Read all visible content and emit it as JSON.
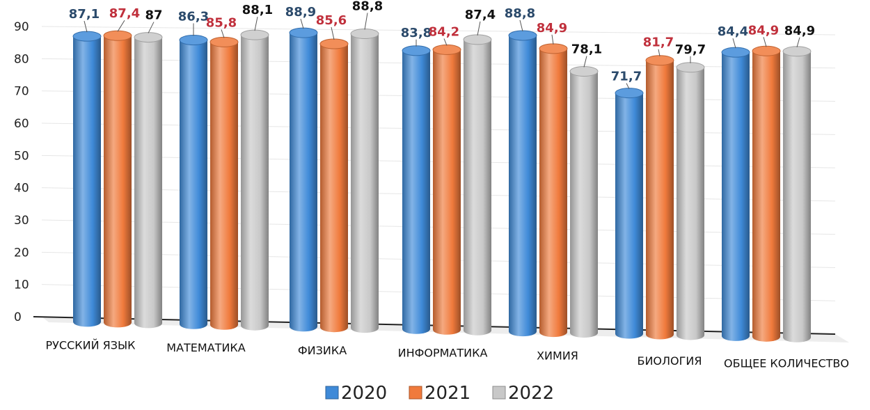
{
  "chart_data": {
    "type": "bar",
    "categories": [
      "РУССКИЙ ЯЗЫК",
      "МАТЕМАТИКА",
      "ФИЗИКА",
      "ИНФОРМАТИКА",
      "ХИМИЯ",
      "БИОЛОГИЯ",
      "ОБЩЕЕ КОЛИЧЕСТВО"
    ],
    "series": [
      {
        "name": "2020",
        "values": [
          87.1,
          86.3,
          88.9,
          83.8,
          88.8,
          71.7,
          84.4
        ],
        "labels": [
          "87,1",
          "86,3",
          "88,9",
          "83,8",
          "88,8",
          "71,7",
          "84,4"
        ],
        "color": "#3f8ad8",
        "label_color": "#2b4a6b"
      },
      {
        "name": "2021",
        "values": [
          87.4,
          85.8,
          85.6,
          84.2,
          84.9,
          81.7,
          84.9
        ],
        "labels": [
          "87,4",
          "85,8",
          "85,6",
          "84,2",
          "84,9",
          "81,7",
          "84,9"
        ],
        "color": "#f07a3c",
        "label_color": "#c0303c"
      },
      {
        "name": "2022",
        "values": [
          87,
          88.1,
          88.8,
          87.4,
          78.1,
          79.7,
          84.9
        ],
        "labels": [
          "87",
          "88,1",
          "88,8",
          "87,4",
          "78,1",
          "79,7",
          "84,9"
        ],
        "color": "#c8c8c8",
        "label_color": "#111111"
      }
    ],
    "yticks": [
      "0",
      "10",
      "20",
      "30",
      "40",
      "50",
      "60",
      "70",
      "80",
      "90"
    ],
    "ylim": [
      0,
      90
    ],
    "grid": true,
    "legend_position": "bottom"
  }
}
